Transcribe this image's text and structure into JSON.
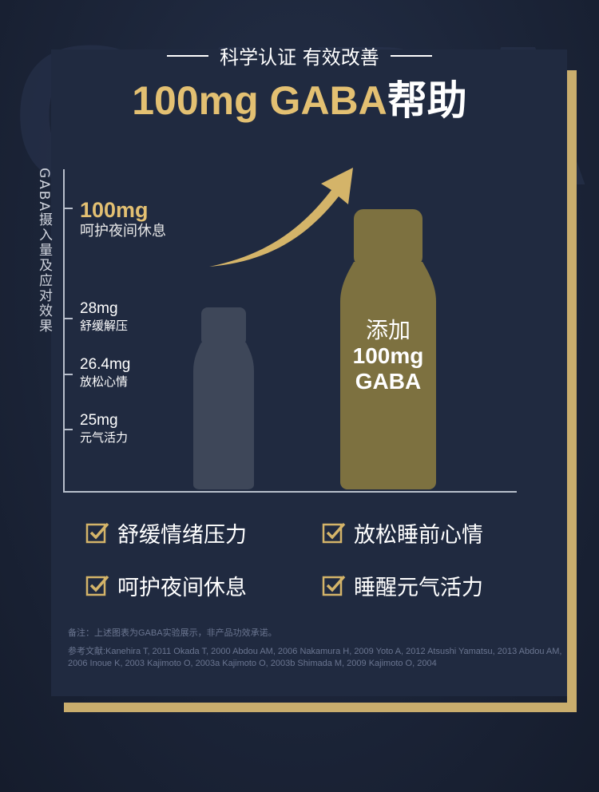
{
  "watermark": "GABA",
  "header": {
    "subtitle": "科学认证 有效改善",
    "title_gold": "100mg GABA",
    "title_white": "帮助"
  },
  "chart": {
    "y_axis_label": "GABA摄入量及应对效果",
    "levels": [
      {
        "amount": "100mg",
        "effect": "呵护夜间休息"
      },
      {
        "amount": "28mg",
        "effect": "舒缓解压"
      },
      {
        "amount": "26.4mg",
        "effect": "放松心情"
      },
      {
        "amount": "25mg",
        "effect": "元气活力"
      }
    ],
    "bottle_label": {
      "line1": "添加",
      "line2": "100mg",
      "line3": "GABA"
    },
    "colors": {
      "gold": "#e3c072",
      "bottle_gold": "#7e7240",
      "bottle_dark": "#3d4659"
    }
  },
  "benefits": [
    {
      "text": "舒缓情绪压力",
      "icon": "check-box-icon"
    },
    {
      "text": "放松睡前心情",
      "icon": "check-box-icon"
    },
    {
      "text": "呵护夜间休息",
      "icon": "check-box-icon"
    },
    {
      "text": "睡醒元气活力",
      "icon": "check-box-icon"
    }
  ],
  "notes": {
    "disclaimer": "备注：上述图表为GABA实验展示，非产品功效承诺。",
    "references": "参考文献:Kanehira T, 2011 Okada T, 2000 Abdou AM, 2006 Nakamura H, 2009 Yoto A, 2012 Atsushi Yamatsu, 2013 Abdou AM, 2006  Inoue K, 2003 Kajimoto O, 2003a Kajimoto O, 2003b  Shimada M, 2009 Kajimoto O, 2004"
  }
}
